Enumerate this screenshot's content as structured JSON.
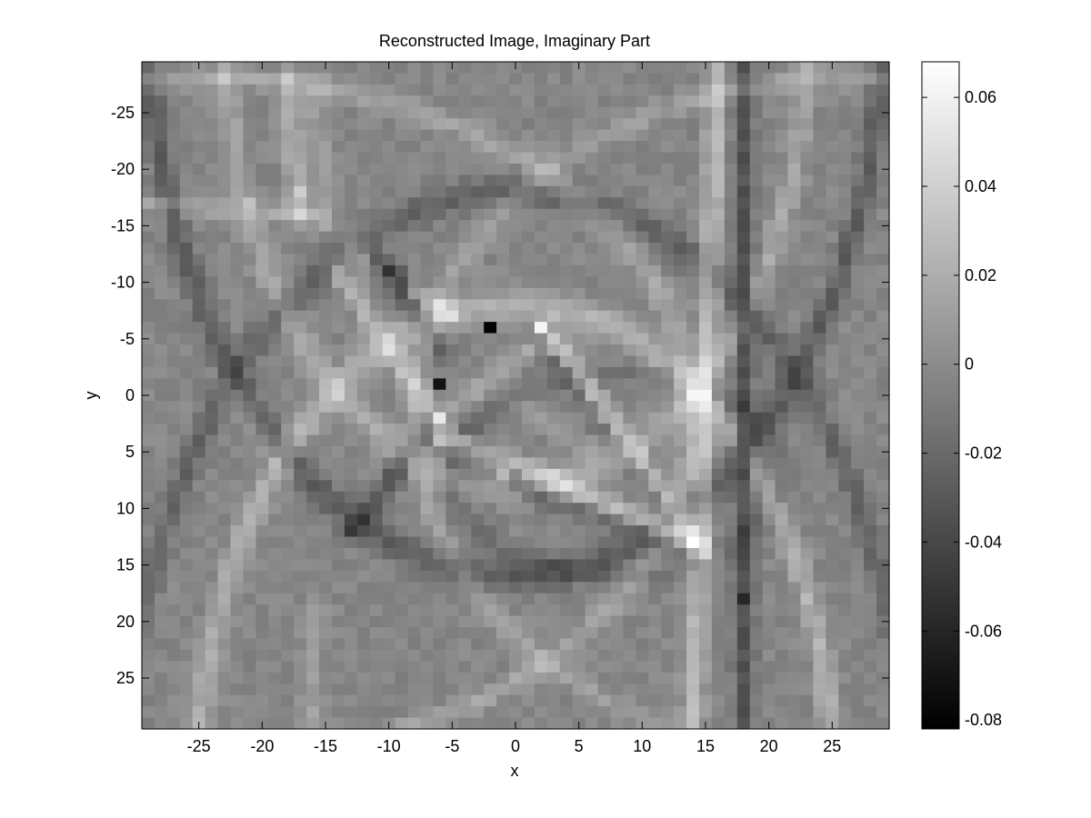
{
  "chart_data": {
    "type": "heatmap",
    "title": "Reconstructed Image, Imaginary Part",
    "xlabel": "x",
    "ylabel": "y",
    "xlim": [
      -29.5,
      29.5
    ],
    "ylim": [
      -29.5,
      29.5
    ],
    "y_axis_reversed": true,
    "xticks": [
      -25,
      -20,
      -15,
      -10,
      -5,
      0,
      5,
      10,
      15,
      20,
      25
    ],
    "yticks": [
      -25,
      -20,
      -15,
      -10,
      -5,
      0,
      5,
      10,
      15,
      20,
      25
    ],
    "colormap": "gray",
    "clim": [
      -0.082,
      0.068
    ],
    "colorbar_ticks": [
      -0.08,
      -0.06,
      -0.04,
      -0.02,
      0,
      0.02,
      0.04,
      0.06
    ],
    "grid_resolution": 1,
    "grid_extent": [
      -29,
      29
    ],
    "background_value": -0.003,
    "features": [
      {
        "kind": "ellipse",
        "center": [
          0,
          -32
        ],
        "radii": [
          23,
          40
        ],
        "value": 0.02
      },
      {
        "kind": "ellipse",
        "center": [
          0,
          -34
        ],
        "radii": [
          29,
          50
        ],
        "value": -0.025
      },
      {
        "kind": "ellipse",
        "center": [
          0,
          34
        ],
        "radii": [
          25,
          42
        ],
        "value": 0.025
      },
      {
        "kind": "ellipse",
        "center": [
          0,
          36
        ],
        "radii": [
          31,
          54
        ],
        "value": -0.02
      },
      {
        "kind": "ellipse",
        "center": [
          -24,
          2
        ],
        "radii": [
          38,
          30
        ],
        "value": 0.018
      },
      {
        "kind": "ellipse",
        "center": [
          26,
          2
        ],
        "radii": [
          34,
          30
        ],
        "value": 0.015
      },
      {
        "kind": "ellipse",
        "center": [
          8,
          7
        ],
        "radii": [
          13,
          9
        ],
        "value": -0.012
      },
      {
        "kind": "line",
        "from": [
          -18,
          -28
        ],
        "to": [
          -17,
          -16
        ],
        "value": 0.025
      },
      {
        "kind": "line",
        "from": [
          -16,
          -28
        ],
        "to": [
          -15,
          -15
        ],
        "value": 0.015
      },
      {
        "kind": "line",
        "from": [
          -29,
          -17
        ],
        "to": [
          -16,
          -16
        ],
        "value": 0.02
      },
      {
        "kind": "line",
        "from": [
          -13,
          -13
        ],
        "to": [
          -5,
          -7
        ],
        "value": 0.025
      },
      {
        "kind": "line",
        "from": [
          -14,
          -11
        ],
        "to": [
          -7,
          1
        ],
        "value": 0.03
      },
      {
        "kind": "line",
        "from": [
          -10,
          -11
        ],
        "to": [
          -6,
          -4
        ],
        "value": -0.03
      },
      {
        "kind": "line",
        "from": [
          -11,
          -12
        ],
        "to": [
          -9,
          -10
        ],
        "value": -0.04
      },
      {
        "kind": "line",
        "from": [
          -6,
          3
        ],
        "to": [
          14,
          13
        ],
        "value": 0.035
      },
      {
        "kind": "line",
        "from": [
          -5,
          6
        ],
        "to": [
          14,
          14
        ],
        "value": -0.015
      },
      {
        "kind": "line",
        "from": [
          3,
          -5
        ],
        "to": [
          15,
          14
        ],
        "value": 0.035
      },
      {
        "kind": "line",
        "from": [
          3,
          -3
        ],
        "to": [
          12,
          10
        ],
        "value": -0.02
      },
      {
        "kind": "line",
        "from": [
          -6,
          2
        ],
        "to": [
          -13,
          12
        ],
        "value": -0.03
      },
      {
        "kind": "line",
        "from": [
          1,
          -4
        ],
        "to": [
          -6,
          2
        ],
        "value": 0.02
      },
      {
        "kind": "line",
        "from": [
          -4,
          3
        ],
        "to": [
          2,
          9
        ],
        "value": -0.015
      },
      {
        "kind": "line",
        "from": [
          1,
          1
        ],
        "to": [
          6,
          5
        ],
        "value": 0.01
      },
      {
        "kind": "line",
        "from": [
          16,
          -29
        ],
        "to": [
          14,
          29
        ],
        "value": 0.03
      },
      {
        "kind": "line",
        "from": [
          18,
          -29
        ],
        "to": [
          18,
          29
        ],
        "value": -0.03
      },
      {
        "kind": "line",
        "from": [
          -16,
          19
        ],
        "to": [
          -16,
          29
        ],
        "value": 0.015
      },
      {
        "kind": "line",
        "from": [
          -23,
          -1
        ],
        "to": [
          -18,
          7
        ],
        "value": 0.012
      }
    ],
    "peaks": [
      {
        "x": 2,
        "y": -6,
        "value": 0.068
      },
      {
        "x": -6,
        "y": 2,
        "value": 0.06
      },
      {
        "x": -2,
        "y": -6,
        "value": -0.08
      },
      {
        "x": -6,
        "y": -1,
        "value": -0.075
      },
      {
        "x": 18,
        "y": 18,
        "value": -0.06
      },
      {
        "x": -17,
        "y": -18,
        "value": 0.04
      },
      {
        "x": -6,
        "y": 4,
        "value": 0.03
      },
      {
        "x": 3,
        "y": -7,
        "value": 0.03
      },
      {
        "x": -1,
        "y": 7,
        "value": 0.032
      },
      {
        "x": -10,
        "y": -11,
        "value": -0.05
      }
    ]
  }
}
